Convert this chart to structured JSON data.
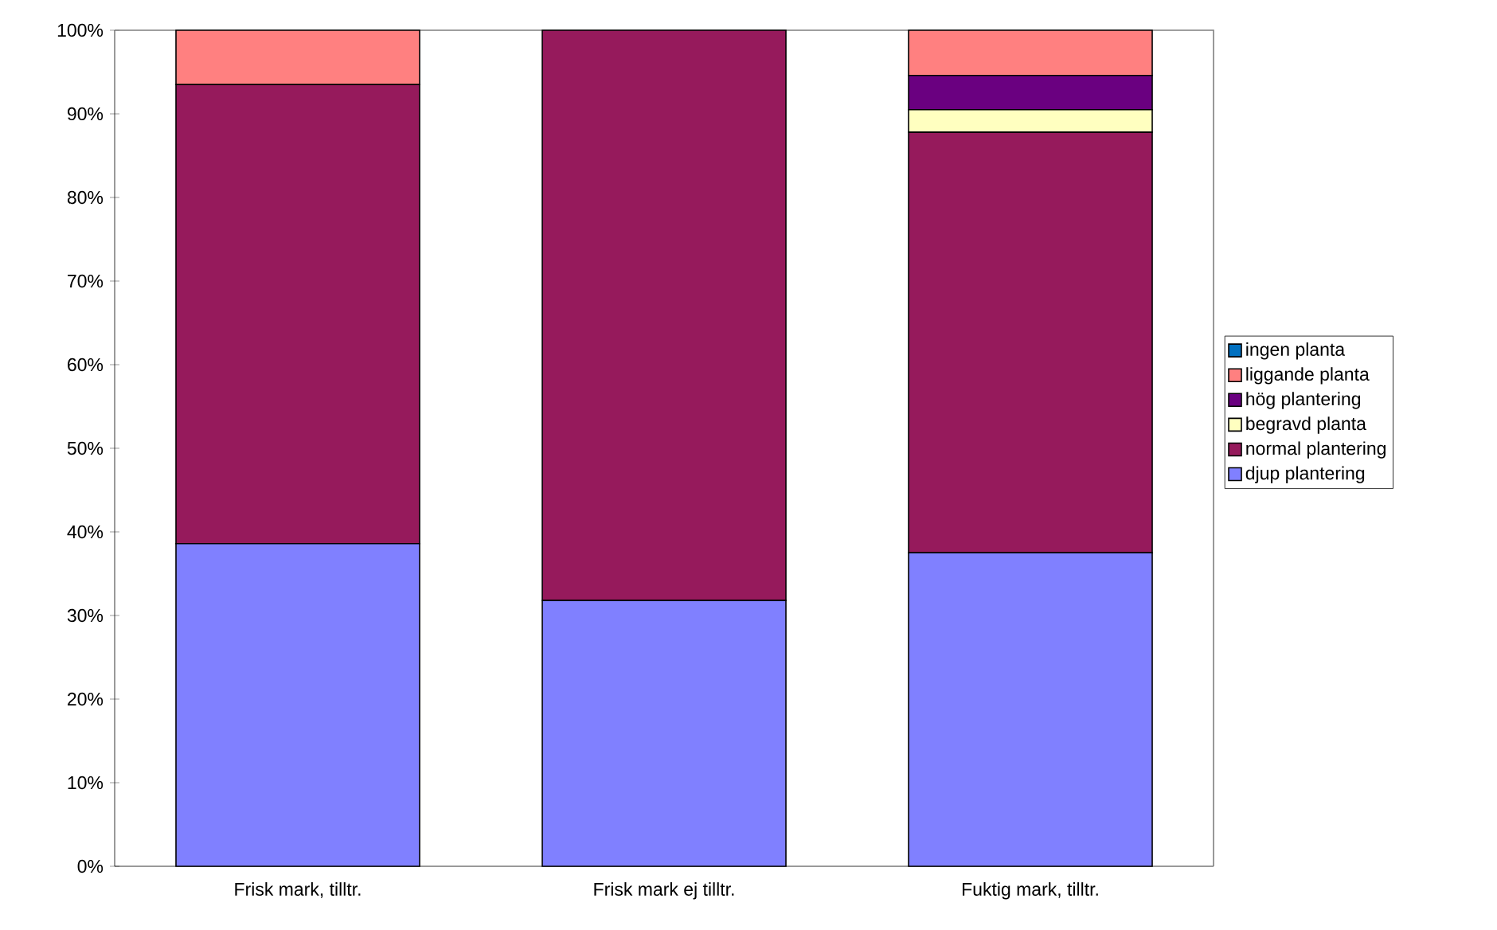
{
  "chart_data": {
    "type": "bar",
    "stacked": true,
    "categories": [
      "Frisk mark, tilltr.",
      "Frisk mark ej tilltr.",
      "Fuktig mark, tilltr."
    ],
    "series": [
      {
        "name": "djup plantering",
        "color": "#8080ff",
        "values": [
          38.6,
          31.8,
          37.5
        ]
      },
      {
        "name": "normal plantering",
        "color": "#961a5c",
        "values": [
          54.9,
          68.2,
          50.3
        ]
      },
      {
        "name": "begravd planta",
        "color": "#ffffc0",
        "values": [
          0,
          0,
          2.7
        ]
      },
      {
        "name": "hög plantering",
        "color": "#6a0080",
        "values": [
          0,
          0,
          4.1
        ]
      },
      {
        "name": "liggande planta",
        "color": "#ff8080",
        "values": [
          6.5,
          0,
          5.4
        ]
      },
      {
        "name": "ingen planta",
        "color": "#0070c0",
        "values": [
          0,
          0,
          0
        ]
      }
    ],
    "ylim": [
      0,
      100
    ],
    "yticks": [
      {
        "value": 0,
        "label": "0%"
      },
      {
        "value": 10,
        "label": "10%"
      },
      {
        "value": 20,
        "label": "20%"
      },
      {
        "value": 30,
        "label": "30%"
      },
      {
        "value": 40,
        "label": "40%"
      },
      {
        "value": 50,
        "label": "50%"
      },
      {
        "value": 60,
        "label": "60%"
      },
      {
        "value": 70,
        "label": "70%"
      },
      {
        "value": 80,
        "label": "80%"
      },
      {
        "value": 90,
        "label": "90%"
      },
      {
        "value": 100,
        "label": "100%"
      }
    ],
    "grid": false,
    "legend": "right"
  }
}
